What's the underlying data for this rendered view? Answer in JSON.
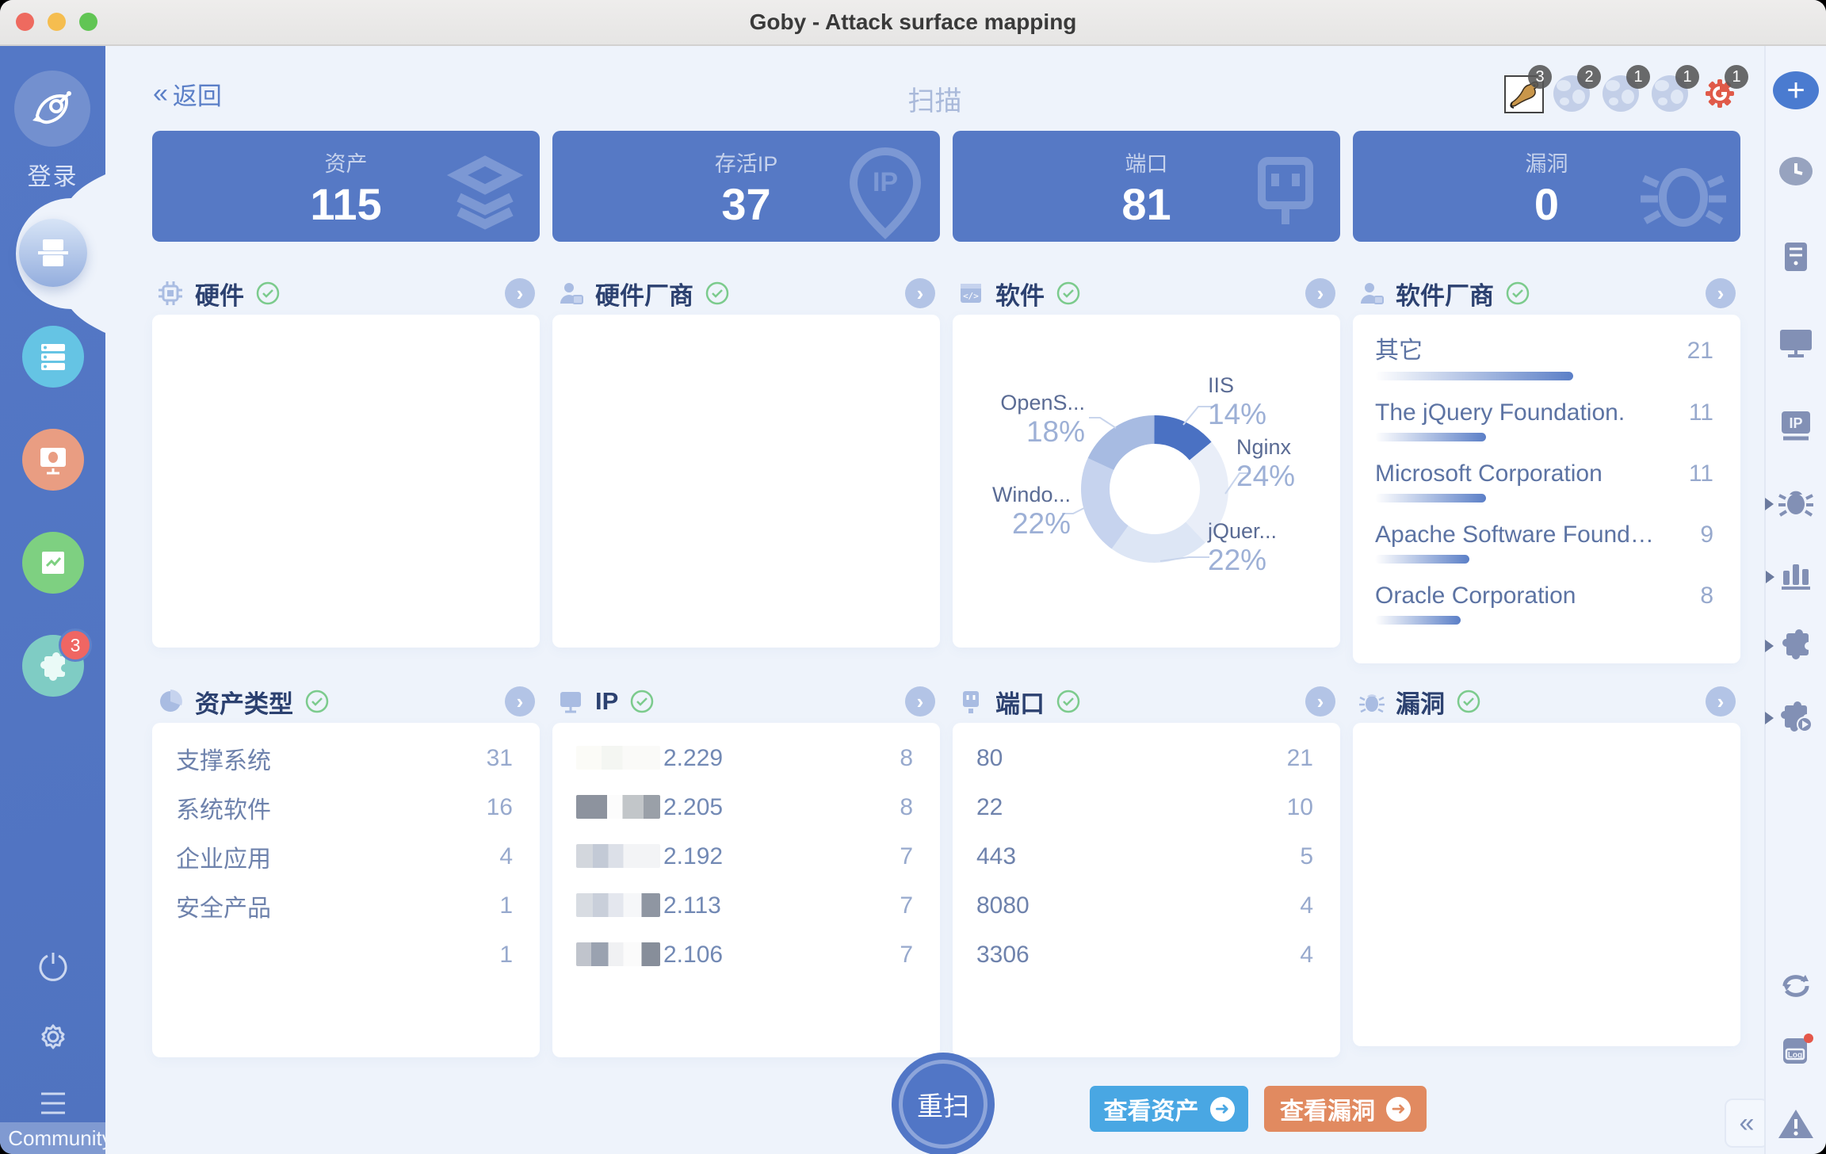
{
  "window": {
    "title": "Goby - Attack surface mapping"
  },
  "sidebar": {
    "login_label": "登录",
    "community_label": "Community",
    "plugin_badge": "3",
    "items": [
      "goby-logo",
      "scan-active",
      "asset-server",
      "vuln-monitor",
      "report-trend",
      "plugin-puzzle",
      "power",
      "settings",
      "menu"
    ]
  },
  "header": {
    "back_chevrons": "«",
    "back_label": "返回",
    "title": "扫描",
    "service_icons": [
      {
        "name": "tomcat-service-icon",
        "badge": "3"
      },
      {
        "name": "web-service-icon",
        "badge": "2"
      },
      {
        "name": "web-service-icon",
        "badge": "1"
      },
      {
        "name": "web-service-icon",
        "badge": "1"
      },
      {
        "name": "goby-service-icon",
        "badge": "1"
      }
    ]
  },
  "stats": [
    {
      "label": "资产",
      "value": "115",
      "icon": "layers-icon"
    },
    {
      "label": "存活IP",
      "value": "37",
      "icon": "ip-pin-icon"
    },
    {
      "label": "端口",
      "value": "81",
      "icon": "port-icon"
    },
    {
      "label": "漏洞",
      "value": "0",
      "icon": "bug-icon"
    }
  ],
  "row1": {
    "hardware": {
      "title": "硬件"
    },
    "hardware_vendor": {
      "title": "硬件厂商"
    },
    "software": {
      "title": "软件"
    },
    "software_vendor": {
      "title": "软件厂商",
      "items": [
        {
          "label": "其它",
          "value": 21
        },
        {
          "label": "The jQuery Foundation.",
          "value": 11
        },
        {
          "label": "Microsoft Corporation",
          "value": 11
        },
        {
          "label": "Apache Software Found…",
          "value": 9
        },
        {
          "label": "Oracle Corporation",
          "value": 8
        }
      ]
    }
  },
  "row2": {
    "asset_type": {
      "title": "资产类型",
      "items": [
        {
          "label": "支撑系统",
          "value": 31
        },
        {
          "label": "系统软件",
          "value": 16
        },
        {
          "label": "企业应用",
          "value": 4
        },
        {
          "label": "安全产品",
          "value": 1
        },
        {
          "label": "",
          "value": 1
        }
      ]
    },
    "ip": {
      "title": "IP",
      "redacted_prefix": true,
      "items": [
        {
          "suffix": "2.229",
          "value": 8
        },
        {
          "suffix": "2.205",
          "value": 8
        },
        {
          "suffix": "2.192",
          "value": 7
        },
        {
          "suffix": "2.113",
          "value": 7
        },
        {
          "suffix": "2.106",
          "value": 7
        }
      ]
    },
    "port": {
      "title": "端口",
      "items": [
        {
          "label": "80",
          "value": 21
        },
        {
          "label": "22",
          "value": 10
        },
        {
          "label": "443",
          "value": 5
        },
        {
          "label": "8080",
          "value": 4
        },
        {
          "label": "3306",
          "value": 4
        }
      ]
    },
    "vuln": {
      "title": "漏洞"
    }
  },
  "chart_data": {
    "type": "pie",
    "donut": true,
    "title": "软件",
    "labels": [
      "IIS",
      "Nginx",
      "jQuer...",
      "Windo...",
      "OpenS..."
    ],
    "values_pct": [
      14,
      24,
      22,
      22,
      18
    ],
    "pct_display": [
      "14%",
      "24%",
      "22%",
      "22%",
      "18%"
    ],
    "colors": [
      "#4a71c3",
      "#e9eef8",
      "#dde6f5",
      "#c6d3ee",
      "#a7bbe2"
    ],
    "legend_position": "around-labels-with-leader-lines"
  },
  "footer": {
    "rescan_label": "重扫",
    "view_assets_label": "查看资产",
    "view_vulns_label": "查看漏洞"
  },
  "rightbar_icons": [
    "add",
    "history-clock",
    "host-server",
    "monitor",
    "ip",
    "vuln-bug",
    "report-chart",
    "plugin",
    "plugin-run",
    "refresh",
    "log",
    "warning"
  ],
  "misc": {
    "log_text": "Log",
    "collapse_glyph": "«"
  }
}
